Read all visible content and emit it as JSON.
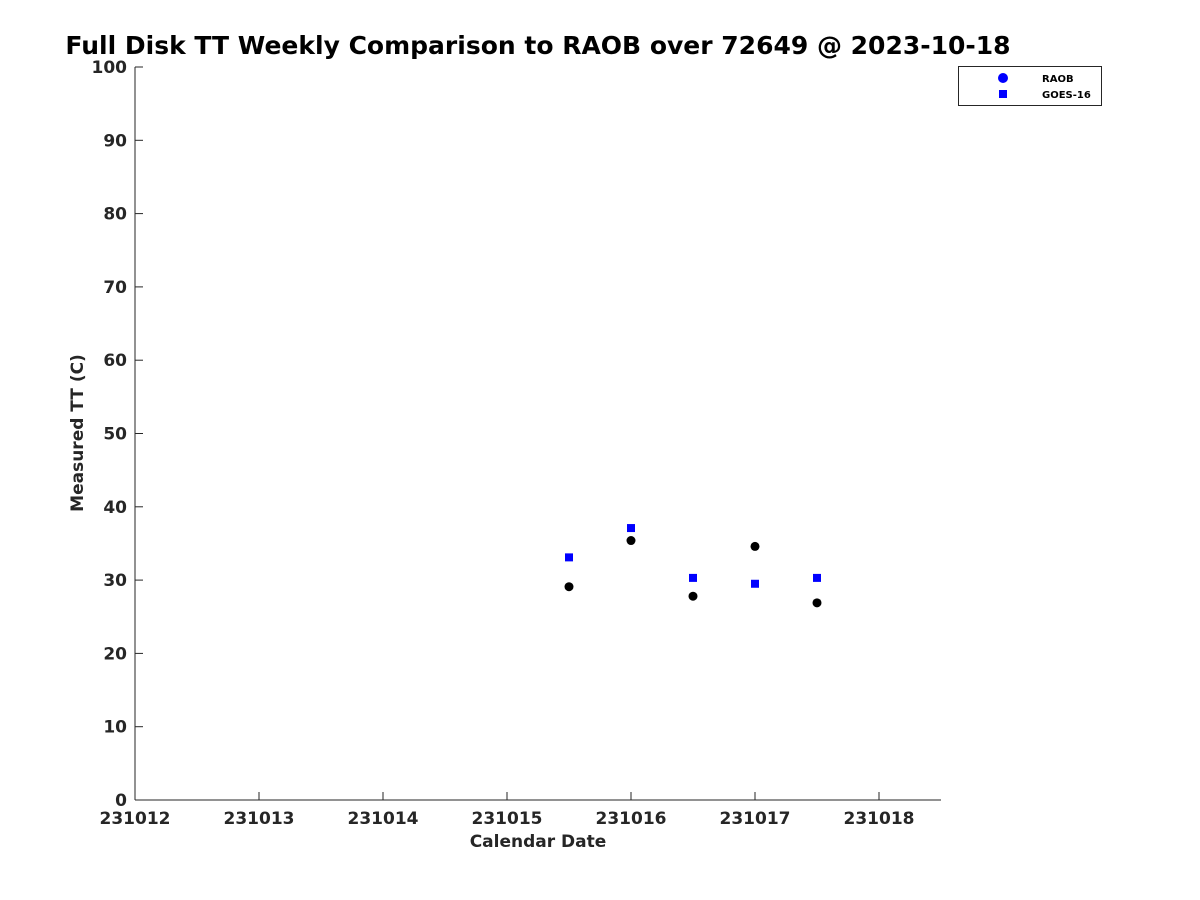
{
  "chart_data": {
    "type": "scatter",
    "title": "Full Disk TT Weekly Comparison to RAOB over 72649 @ 2023-10-18",
    "xlabel": "Calendar Date",
    "ylabel": "Measured TT (C)",
    "xlim": [
      231012,
      231018.5
    ],
    "ylim": [
      0,
      100
    ],
    "x_ticks": [
      "231012",
      "231013",
      "231014",
      "231015",
      "231016",
      "231017",
      "231018"
    ],
    "y_ticks": [
      "0",
      "10",
      "20",
      "30",
      "40",
      "50",
      "60",
      "70",
      "80",
      "90",
      "100"
    ],
    "grid": false,
    "legend_position": "top-right",
    "series": [
      {
        "name": "RAOB",
        "marker": "circle",
        "legend_color": "#0000ff",
        "color": "#000000",
        "x": [
          231015.5,
          231016.0,
          231016.5,
          231017.0,
          231017.5
        ],
        "y": [
          29.1,
          35.4,
          27.8,
          34.6,
          26.9
        ]
      },
      {
        "name": "GOES-16",
        "marker": "square",
        "legend_color": "#0000ff",
        "color": "#0000ff",
        "x": [
          231015.5,
          231016.0,
          231016.5,
          231017.0,
          231017.5
        ],
        "y": [
          33.1,
          37.1,
          30.3,
          29.5,
          30.3
        ]
      }
    ]
  }
}
